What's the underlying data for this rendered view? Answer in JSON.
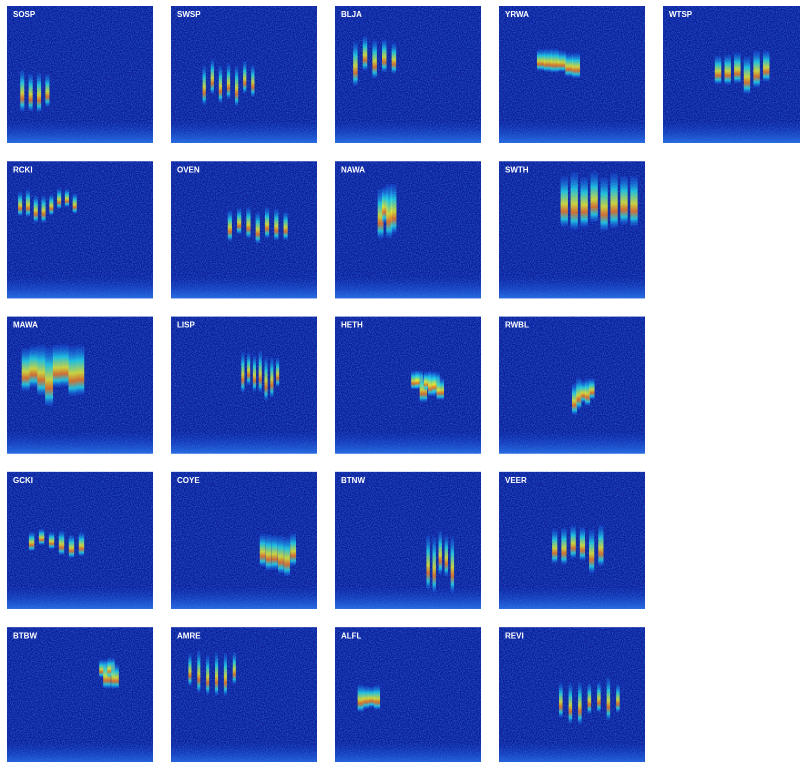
{
  "rows": [
    [
      "SOSP",
      "SWSP",
      "BLJA",
      "YRWA",
      "WTSP"
    ],
    [
      "RCKI",
      "OVEN",
      "NAWA",
      "SWTH"
    ],
    [
      "MAWA",
      "LISP",
      "HETH",
      "RWBL"
    ],
    [
      "GCKI",
      "COYE",
      "BTNW",
      "VEER"
    ],
    [
      "BTBW",
      "AMRE",
      "ALFL",
      "REVI"
    ]
  ]
}
